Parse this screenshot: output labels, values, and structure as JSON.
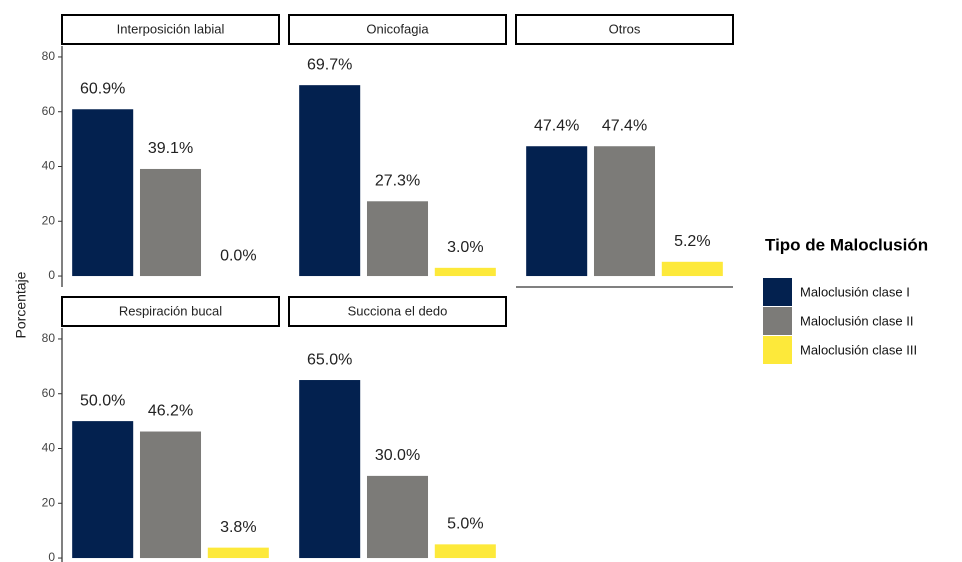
{
  "chart_data": {
    "type": "bar",
    "ylabel": "Porcentaje",
    "legend_title": "Tipo de Maloclusión",
    "series": [
      {
        "name": "Maloclusión clase I",
        "color": "#03214f"
      },
      {
        "name": "Maloclusión clase II",
        "color": "#7c7b78"
      },
      {
        "name": "Maloclusión clase III",
        "color": "#fde93a"
      }
    ],
    "ylim": [
      -4,
      84
    ],
    "yticks": [
      0,
      20,
      40,
      60,
      80
    ],
    "facets": [
      {
        "title": "Interposición labial",
        "values": [
          60.9,
          39.1,
          0.0
        ],
        "value_labels": [
          "60.9%",
          "39.1%",
          "0.0%"
        ]
      },
      {
        "title": "Onicofagia",
        "values": [
          69.7,
          27.3,
          3.0
        ],
        "value_labels": [
          "69.7%",
          "27.3%",
          "3.0%"
        ]
      },
      {
        "title": "Otros",
        "values": [
          47.4,
          47.4,
          5.2
        ],
        "value_labels": [
          "47.4%",
          "47.4%",
          "5.2%"
        ]
      },
      {
        "title": "Respiración bucal",
        "values": [
          50.0,
          46.2,
          3.8
        ],
        "value_labels": [
          "50.0%",
          "46.2%",
          "3.8%"
        ]
      },
      {
        "title": "Succiona el dedo",
        "values": [
          65.0,
          30.0,
          5.0
        ],
        "value_labels": [
          "65.0%",
          "30.0%",
          "5.0%"
        ]
      }
    ]
  }
}
